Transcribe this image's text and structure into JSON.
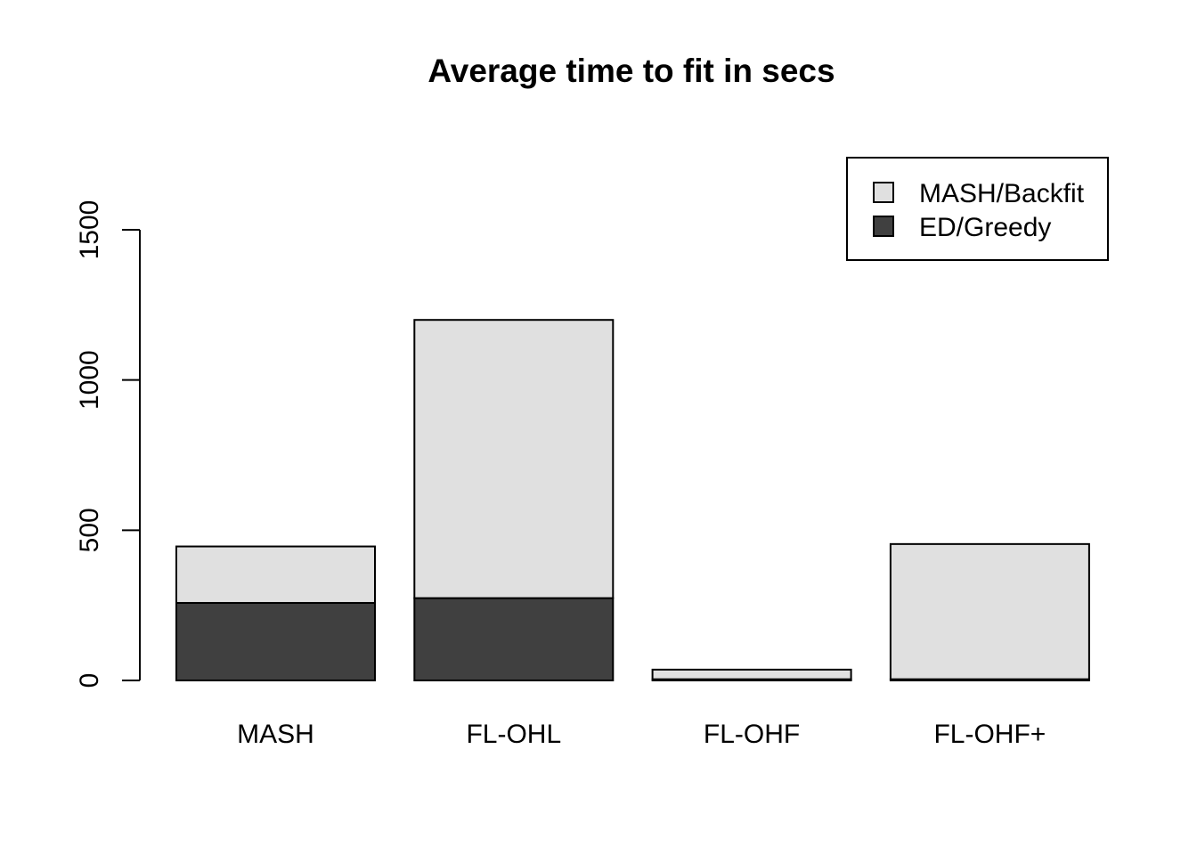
{
  "chart_data": {
    "type": "bar",
    "stacked": true,
    "title": "Average time to fit in secs",
    "xlabel": "",
    "ylabel": "",
    "categories": [
      "MASH",
      "FL-OHL",
      "FL-OHF",
      "FL-OHF+"
    ],
    "series": [
      {
        "name": "ED/Greedy",
        "values": [
          258,
          274,
          4,
          4
        ],
        "color": "#404040"
      },
      {
        "name": "MASH/Backfit",
        "values": [
          188,
          926,
          32,
          450
        ],
        "color": "#e0e0e0"
      }
    ],
    "ylim": [
      0,
      1500
    ],
    "yticks": [
      0,
      500,
      1000,
      1500
    ],
    "grid": false,
    "legend": {
      "position": "top-right",
      "entries": [
        {
          "name": "MASH/Backfit",
          "color": "#e0e0e0"
        },
        {
          "name": "ED/Greedy",
          "color": "#404040"
        }
      ]
    }
  }
}
